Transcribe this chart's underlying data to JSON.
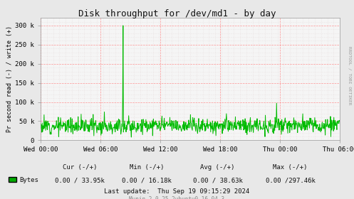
{
  "title": "Disk throughput for /dev/md1 - by day",
  "ylabel": "Pr second read (-) / write (+)",
  "bg_color": "#e8e8e8",
  "plot_bg_color": "#f5f5f5",
  "grid_color_major": "#ff8888",
  "grid_color_minor": "#ddcccc",
  "line_color": "#00bb00",
  "ylim": [
    0,
    320000
  ],
  "yticks": [
    0,
    50000,
    100000,
    150000,
    200000,
    250000,
    300000
  ],
  "ytick_labels": [
    "0",
    "50 k",
    "100 k",
    "150 k",
    "200 k",
    "250 k",
    "300 k"
  ],
  "xtick_labels": [
    "Wed 00:00",
    "Wed 06:00",
    "Wed 12:00",
    "Wed 18:00",
    "Thu 00:00",
    "Thu 06:00"
  ],
  "legend_label": "Bytes",
  "legend_color": "#00aa00",
  "cur_text": "Cur (-/+)",
  "min_text": "Min (-/+)",
  "avg_text": "Avg (-/+)",
  "max_text": "Max (-/+)",
  "cur_val": "0.00 / 33.95k",
  "min_val": "0.00 / 16.18k",
  "avg_val": "0.00 / 38.63k",
  "max_val": "0.00 /297.46k",
  "last_update": "Last update:  Thu Sep 19 09:15:29 2024",
  "munin_text": "Munin 2.0.25-2ubuntu0.16.04.3",
  "right_label": "RRDTOOL / TOBI OETIKER",
  "num_points": 800,
  "spike_index": 220,
  "spike_value": 300000,
  "spike_pre_value": 108000,
  "spike2_index": 630,
  "spike2_value": 97000
}
